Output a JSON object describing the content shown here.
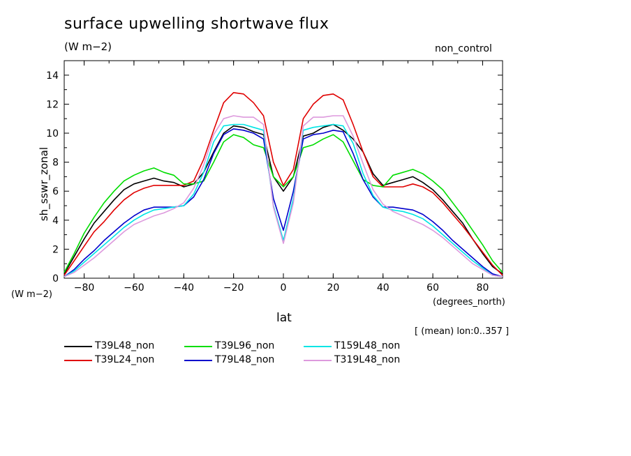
{
  "header": {
    "title": "surface upwelling shortwave flux",
    "subtitle": "(W m−2)",
    "run_label": "non_control"
  },
  "notes": {
    "y_unit": "(W m−2)",
    "x_unit": "(degrees_north)",
    "mean_note": "[ (mean) lon:0..357 ]"
  },
  "chart_data": {
    "type": "line",
    "title": "surface upwelling shortwave flux",
    "xlabel": "lat",
    "ylabel": "sh_sswr_zonal",
    "xlim": [
      -88,
      88
    ],
    "ylim": [
      0,
      15
    ],
    "xticks": [
      -80,
      -60,
      -40,
      -20,
      0,
      20,
      40,
      60,
      80
    ],
    "yticks": [
      0,
      2,
      4,
      6,
      8,
      10,
      12,
      14
    ],
    "grid": false,
    "legend": "bottom",
    "x": [
      -88,
      -84,
      -80,
      -76,
      -72,
      -68,
      -64,
      -60,
      -56,
      -52,
      -48,
      -44,
      -40,
      -36,
      -32,
      -28,
      -24,
      -20,
      -16,
      -12,
      -8,
      -4,
      0,
      4,
      8,
      12,
      16,
      20,
      24,
      28,
      32,
      36,
      40,
      44,
      48,
      52,
      56,
      60,
      64,
      68,
      72,
      76,
      80,
      84,
      88
    ],
    "series": [
      {
        "name": "T39L48_non",
        "color": "#000000",
        "values": [
          0.3,
          1.5,
          2.7,
          3.8,
          4.6,
          5.4,
          6.1,
          6.5,
          6.7,
          6.9,
          6.7,
          6.6,
          6.3,
          6.5,
          7.3,
          8.7,
          10.0,
          10.5,
          10.4,
          10.1,
          9.9,
          7.0,
          6.0,
          7.0,
          9.8,
          10.0,
          10.4,
          10.6,
          10.2,
          9.6,
          8.7,
          7.2,
          6.4,
          6.6,
          6.8,
          7.0,
          6.6,
          6.1,
          5.4,
          4.6,
          3.8,
          2.7,
          1.7,
          0.8,
          0.3
        ]
      },
      {
        "name": "T39L24_non",
        "color": "#e00000",
        "values": [
          0.2,
          1.2,
          2.2,
          3.2,
          3.9,
          4.7,
          5.4,
          5.9,
          6.2,
          6.4,
          6.4,
          6.4,
          6.4,
          6.7,
          8.2,
          10.2,
          12.1,
          12.8,
          12.7,
          12.1,
          11.2,
          8.0,
          6.4,
          7.5,
          11.0,
          12.0,
          12.6,
          12.7,
          12.3,
          10.6,
          8.7,
          7.0,
          6.3,
          6.3,
          6.3,
          6.5,
          6.3,
          5.9,
          5.2,
          4.4,
          3.6,
          2.7,
          1.8,
          0.9,
          0.2
        ]
      },
      {
        "name": "T39L96_non",
        "color": "#00dd00",
        "values": [
          0.4,
          1.7,
          3.1,
          4.2,
          5.2,
          6.0,
          6.7,
          7.1,
          7.4,
          7.6,
          7.3,
          7.1,
          6.5,
          6.5,
          6.7,
          8.0,
          9.4,
          9.9,
          9.7,
          9.2,
          9.0,
          7.0,
          6.3,
          7.0,
          9.0,
          9.2,
          9.6,
          9.9,
          9.4,
          8.1,
          6.8,
          6.4,
          6.3,
          7.1,
          7.3,
          7.5,
          7.2,
          6.7,
          6.1,
          5.2,
          4.3,
          3.3,
          2.3,
          1.2,
          0.4
        ]
      },
      {
        "name": "T79L48_non",
        "color": "#0000cc",
        "values": [
          0.1,
          0.6,
          1.3,
          1.9,
          2.6,
          3.2,
          3.8,
          4.3,
          4.7,
          4.9,
          4.9,
          4.9,
          5.0,
          5.6,
          6.8,
          8.6,
          9.9,
          10.3,
          10.2,
          10.0,
          9.6,
          5.5,
          3.3,
          6.0,
          9.6,
          9.9,
          10.0,
          10.2,
          10.1,
          8.6,
          6.8,
          5.6,
          4.9,
          4.9,
          4.8,
          4.7,
          4.4,
          3.9,
          3.3,
          2.6,
          2.0,
          1.4,
          0.8,
          0.3,
          0.1
        ]
      },
      {
        "name": "T159L48_non",
        "color": "#00e5e5",
        "values": [
          0.1,
          0.5,
          1.1,
          1.7,
          2.3,
          2.9,
          3.5,
          4.0,
          4.4,
          4.7,
          4.8,
          4.9,
          5.0,
          5.8,
          7.3,
          9.4,
          10.5,
          10.6,
          10.6,
          10.4,
          10.2,
          5.0,
          2.6,
          5.5,
          10.2,
          10.4,
          10.5,
          10.6,
          10.5,
          9.3,
          7.2,
          5.7,
          4.9,
          4.7,
          4.6,
          4.4,
          4.1,
          3.6,
          3.0,
          2.4,
          1.8,
          1.2,
          0.7,
          0.2,
          0.1
        ]
      },
      {
        "name": "T319L48_non",
        "color": "#dd99dd",
        "values": [
          0.1,
          0.4,
          0.9,
          1.4,
          2.0,
          2.6,
          3.2,
          3.7,
          4.0,
          4.3,
          4.5,
          4.8,
          5.2,
          6.2,
          7.8,
          9.9,
          11.0,
          11.2,
          11.1,
          11.1,
          10.6,
          4.9,
          2.4,
          5.2,
          10.5,
          11.1,
          11.1,
          11.2,
          11.2,
          9.8,
          7.9,
          6.1,
          5.1,
          4.6,
          4.3,
          4.0,
          3.7,
          3.3,
          2.8,
          2.2,
          1.6,
          1.0,
          0.6,
          0.2,
          0.1
        ]
      }
    ]
  }
}
